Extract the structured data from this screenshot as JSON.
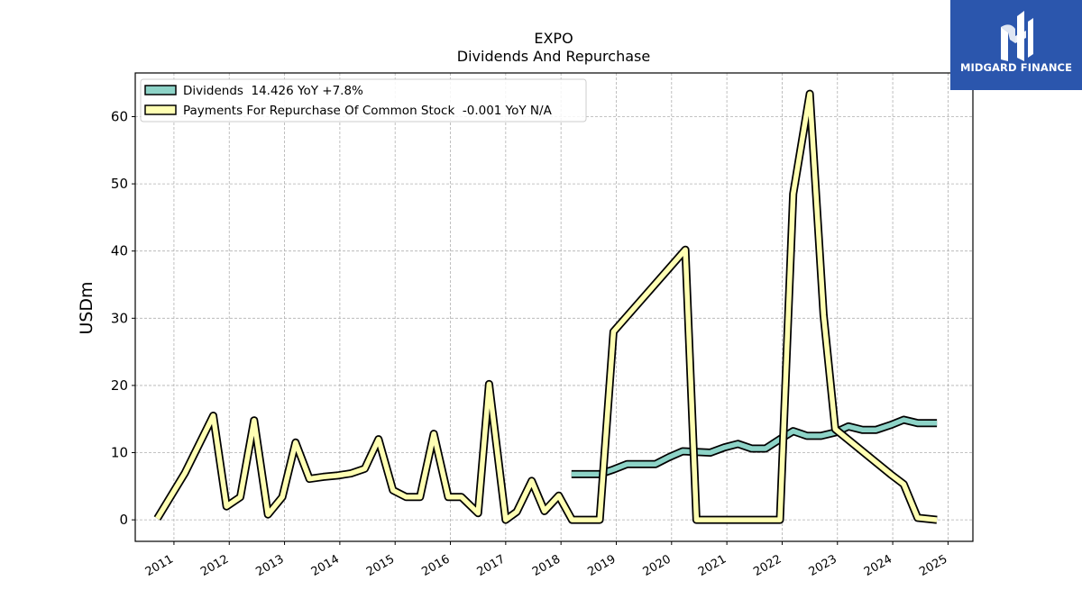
{
  "chart_data": {
    "type": "line",
    "title": "EXPO",
    "subtitle": "Dividends And Repurchase",
    "ylabel": "USDm",
    "xlabel": "",
    "ylim": [
      -3.2,
      66.5
    ],
    "xlim": [
      2010.3,
      2025.45
    ],
    "yticks": [
      0,
      10,
      20,
      30,
      40,
      50,
      60
    ],
    "xticks": [
      "2011",
      "2012",
      "2013",
      "2014",
      "2015",
      "2016",
      "2017",
      "2018",
      "2019",
      "2020",
      "2021",
      "2022",
      "2023",
      "2024",
      "2025"
    ],
    "grid": true,
    "legend_position": "top-left",
    "series": [
      {
        "name": "Dividends  14.426 YoY +7.8%",
        "color": "#8dd3c7",
        "points": [
          [
            2018.19,
            6.8
          ],
          [
            2018.7,
            6.8
          ],
          [
            2018.95,
            7.5
          ],
          [
            2019.2,
            8.3
          ],
          [
            2019.71,
            8.3
          ],
          [
            2019.95,
            9.3
          ],
          [
            2020.2,
            10.2
          ],
          [
            2020.7,
            10.0
          ],
          [
            2020.96,
            10.8
          ],
          [
            2021.2,
            11.3
          ],
          [
            2021.45,
            10.6
          ],
          [
            2021.7,
            10.6
          ],
          [
            2021.96,
            12.0
          ],
          [
            2022.2,
            13.2
          ],
          [
            2022.45,
            12.5
          ],
          [
            2022.7,
            12.5
          ],
          [
            2022.96,
            13.0
          ],
          [
            2023.2,
            13.9
          ],
          [
            2023.45,
            13.4
          ],
          [
            2023.7,
            13.4
          ],
          [
            2023.96,
            14.1
          ],
          [
            2024.2,
            14.9
          ],
          [
            2024.45,
            14.4
          ],
          [
            2024.8,
            14.4
          ]
        ]
      },
      {
        "name": "Payments For Repurchase Of Common Stock  -0.001 YoY N/A",
        "color": "#ffffb3",
        "points": [
          [
            2010.7,
            0.2
          ],
          [
            2011.2,
            7.0
          ],
          [
            2011.71,
            15.5
          ],
          [
            2011.95,
            2.0
          ],
          [
            2012.2,
            3.4
          ],
          [
            2012.45,
            14.8
          ],
          [
            2012.7,
            0.8
          ],
          [
            2012.96,
            3.4
          ],
          [
            2013.2,
            11.5
          ],
          [
            2013.45,
            6.1
          ],
          [
            2013.7,
            6.4
          ],
          [
            2013.96,
            6.6
          ],
          [
            2014.2,
            6.9
          ],
          [
            2014.45,
            7.6
          ],
          [
            2014.7,
            12.0
          ],
          [
            2014.96,
            4.4
          ],
          [
            2015.2,
            3.4
          ],
          [
            2015.45,
            3.4
          ],
          [
            2015.7,
            12.8
          ],
          [
            2015.96,
            3.4
          ],
          [
            2016.2,
            3.4
          ],
          [
            2016.5,
            1.0
          ],
          [
            2016.7,
            20.2
          ],
          [
            2017.0,
            0.0
          ],
          [
            2017.2,
            1.2
          ],
          [
            2017.47,
            5.8
          ],
          [
            2017.7,
            1.3
          ],
          [
            2017.96,
            3.6
          ],
          [
            2018.2,
            0.0
          ],
          [
            2018.7,
            0.0
          ],
          [
            2018.95,
            28.0
          ],
          [
            2020.25,
            40.2
          ],
          [
            2020.45,
            0.0
          ],
          [
            2021.96,
            0.0
          ],
          [
            2022.2,
            48.5
          ],
          [
            2022.5,
            63.4
          ],
          [
            2022.75,
            30.5
          ],
          [
            2022.96,
            13.5
          ],
          [
            2023.96,
            6.8
          ],
          [
            2024.2,
            5.3
          ],
          [
            2024.45,
            0.3
          ],
          [
            2024.8,
            0.0
          ]
        ]
      }
    ]
  },
  "logo": {
    "text": "MIDGARD FINANCE"
  }
}
